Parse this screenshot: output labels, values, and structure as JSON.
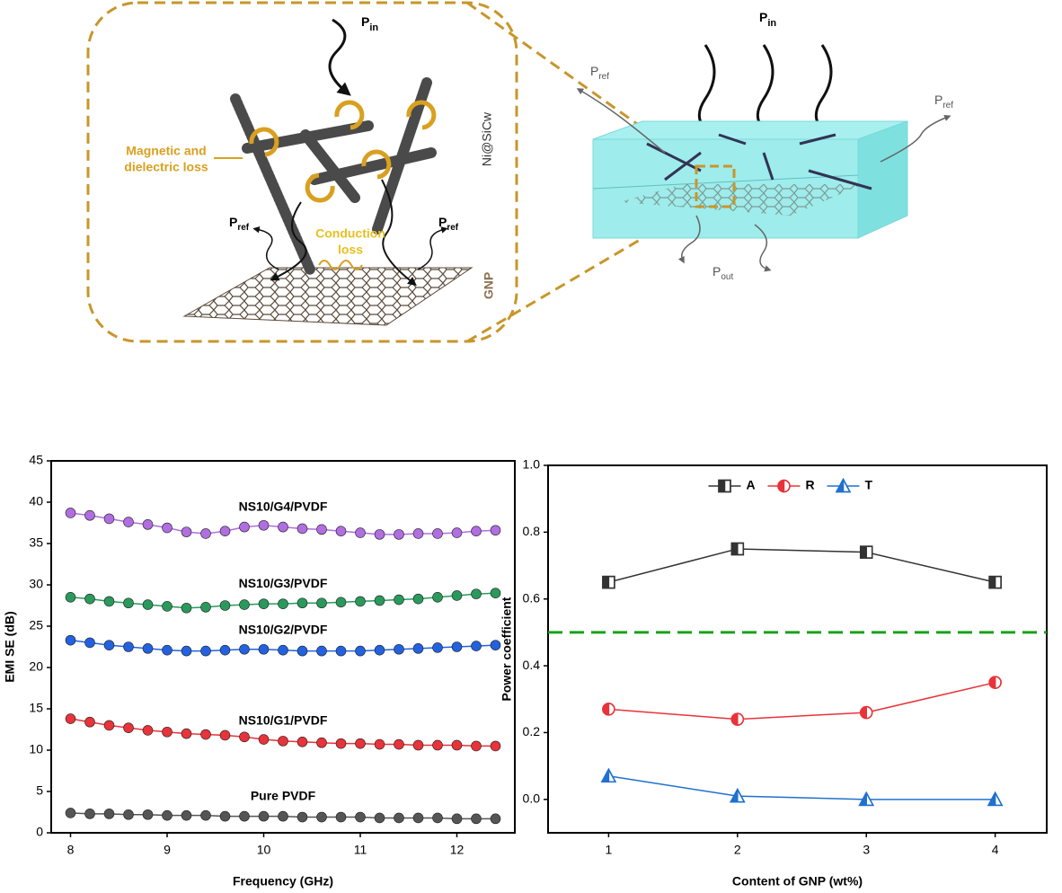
{
  "diagram": {
    "left_pin": {
      "base": "P",
      "sub": "in"
    },
    "magnetic_loss": [
      "Magnetic and",
      "dielectric loss"
    ],
    "whisker_label": "Ni@SiCw",
    "conduction_loss": [
      "Conduction",
      "loss"
    ],
    "left_pref_1": {
      "base": "P",
      "sub": "ref"
    },
    "left_pref_2": {
      "base": "P",
      "sub": "ref"
    },
    "sheet_label": "GNP",
    "right_pin": {
      "base": "P",
      "sub": "in"
    },
    "right_pref_1": {
      "base": "P",
      "sub": "ref"
    },
    "right_pref_2": {
      "base": "P",
      "sub": "ref"
    },
    "right_pout": {
      "base": "P",
      "sub": "out"
    }
  },
  "chart_data": [
    {
      "type": "line",
      "x_label": "Frequency (GHz)",
      "y_label": "EMI SE (dB)",
      "x": [
        8.0,
        8.2,
        8.4,
        8.6,
        8.8,
        9.0,
        9.2,
        9.4,
        9.6,
        9.8,
        10.0,
        10.2,
        10.4,
        10.6,
        10.8,
        11.0,
        11.2,
        11.4,
        11.6,
        11.8,
        12.0,
        12.2,
        12.4
      ],
      "xlim": [
        7.8,
        12.6
      ],
      "xticks": [
        8,
        9,
        10,
        11,
        12
      ],
      "ylim": [
        0,
        45
      ],
      "yticks": [
        0,
        5,
        10,
        15,
        20,
        25,
        30,
        35,
        40,
        45
      ],
      "marker": "ball",
      "series": [
        {
          "name": "Pure PVDF",
          "color": "#555555",
          "values": [
            2.4,
            2.3,
            2.3,
            2.2,
            2.2,
            2.1,
            2.1,
            2.1,
            2.0,
            2.0,
            2.0,
            2.0,
            1.9,
            1.9,
            1.9,
            1.9,
            1.8,
            1.8,
            1.8,
            1.8,
            1.7,
            1.7,
            1.7
          ]
        },
        {
          "name": "NS10/G1/PVDF",
          "color": "#e8333a",
          "values": [
            13.8,
            13.4,
            13.0,
            12.7,
            12.4,
            12.2,
            12.0,
            11.9,
            11.8,
            11.6,
            11.3,
            11.1,
            11.0,
            10.9,
            10.8,
            10.8,
            10.7,
            10.7,
            10.6,
            10.6,
            10.6,
            10.5,
            10.5
          ]
        },
        {
          "name": "NS10/G2/PVDF",
          "color": "#2262e0",
          "values": [
            23.3,
            23.0,
            22.7,
            22.5,
            22.3,
            22.1,
            22.0,
            22.0,
            22.1,
            22.2,
            22.2,
            22.1,
            22.0,
            22.0,
            22.0,
            22.0,
            22.1,
            22.2,
            22.3,
            22.4,
            22.5,
            22.6,
            22.7
          ]
        },
        {
          "name": "NS10/G3/PVDF",
          "color": "#2a9a5c",
          "values": [
            28.5,
            28.3,
            28.0,
            27.8,
            27.6,
            27.4,
            27.2,
            27.3,
            27.5,
            27.6,
            27.7,
            27.7,
            27.8,
            27.8,
            27.9,
            28.0,
            28.1,
            28.2,
            28.3,
            28.5,
            28.7,
            28.9,
            29.0
          ]
        },
        {
          "name": "NS10/G4/PVDF",
          "color": "#b06ee0",
          "values": [
            38.7,
            38.4,
            38.0,
            37.6,
            37.3,
            36.9,
            36.4,
            36.2,
            36.5,
            37.0,
            37.2,
            37.0,
            36.8,
            36.7,
            36.5,
            36.3,
            36.1,
            36.1,
            36.2,
            36.2,
            36.3,
            36.5,
            36.6
          ]
        }
      ]
    },
    {
      "type": "line",
      "x_label": "Content of GNP (wt%)",
      "y_label": "Power coefficient",
      "x": [
        1,
        2,
        3,
        4
      ],
      "xlim": [
        0.53,
        4.4
      ],
      "xticks": [
        1,
        2,
        3,
        4
      ],
      "ylim": [
        -0.1,
        1.0
      ],
      "yticks": [
        {
          "value": 0.0,
          "label": "0.0"
        },
        0.2,
        0.4,
        0.6,
        0.8,
        {
          "value": 1.0,
          "label": "1.0"
        }
      ],
      "legend": "top",
      "reference_line": {
        "value": 0.5,
        "color": "#1aa01a"
      },
      "series": [
        {
          "name": "A",
          "color": "#333333",
          "marker": "square",
          "values": [
            0.65,
            0.75,
            0.74,
            0.65
          ]
        },
        {
          "name": "R",
          "color": "#e8333a",
          "marker": "circle",
          "values": [
            0.27,
            0.24,
            0.26,
            0.35
          ]
        },
        {
          "name": "T",
          "color": "#2070d0",
          "marker": "triangle",
          "values": [
            0.07,
            0.01,
            0.0,
            0.0
          ]
        }
      ]
    }
  ]
}
